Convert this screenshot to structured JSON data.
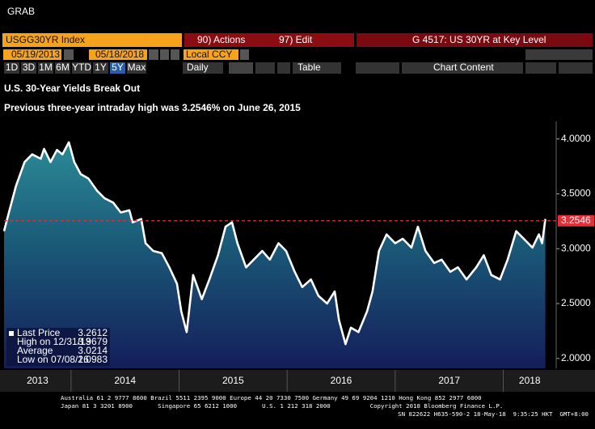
{
  "header": {
    "app": "GRAB"
  },
  "toolbar": {
    "ticker": "USGG30YR Index",
    "actions": "90) Actions",
    "edit": "97) Edit",
    "page_title": "G 4517: US 30YR at Key Level",
    "start_date": "05/19/2013",
    "end_date": "05/18/2018",
    "currency": "Local CCY",
    "frequency": "Daily",
    "table": "Table",
    "chart_content": "Chart Content",
    "periods": [
      "1D",
      "3D",
      "1M",
      "6M",
      "YTD",
      "1Y",
      "5Y",
      "Max"
    ]
  },
  "chart_data": {
    "type": "line",
    "title": "U.S. 30-Year Yields Break Out",
    "subtitle": "Previous three-year intraday high was 3.2546% on June 26, 2015",
    "x": [
      2013.38,
      2013.42,
      2013.49,
      2013.57,
      2013.64,
      2013.72,
      2013.75,
      2013.81,
      2013.87,
      2013.92,
      2013.98,
      2014.03,
      2014.09,
      2014.16,
      2014.24,
      2014.31,
      2014.39,
      2014.46,
      2014.54,
      2014.57,
      2014.65,
      2014.69,
      2014.76,
      2014.84,
      2014.91,
      2014.98,
      2015.02,
      2015.07,
      2015.13,
      2015.21,
      2015.28,
      2015.36,
      2015.43,
      2015.49,
      2015.54,
      2015.62,
      2015.69,
      2015.77,
      2015.84,
      2015.92,
      2015.99,
      2016.07,
      2016.14,
      2016.22,
      2016.29,
      2016.37,
      2016.44,
      2016.48,
      2016.54,
      2016.59,
      2016.66,
      2016.74,
      2016.79,
      2016.85,
      2016.92,
      2017.0,
      2017.07,
      2017.15,
      2017.21,
      2017.28,
      2017.36,
      2017.43,
      2017.51,
      2017.58,
      2017.66,
      2017.75,
      2017.82,
      2017.89,
      2017.97,
      2018.04,
      2018.12,
      2018.19,
      2018.27,
      2018.33,
      2018.36,
      2018.39
    ],
    "series": [
      {
        "color": "#ffffff",
        "values": [
          3.16,
          3.31,
          3.57,
          3.79,
          3.86,
          3.82,
          3.91,
          3.79,
          3.9,
          3.86,
          3.97,
          3.79,
          3.68,
          3.64,
          3.53,
          3.46,
          3.42,
          3.33,
          3.35,
          3.24,
          3.27,
          3.05,
          2.98,
          2.96,
          2.83,
          2.68,
          2.43,
          2.24,
          2.76,
          2.54,
          2.72,
          2.94,
          3.2,
          3.24,
          3.05,
          2.83,
          2.9,
          2.98,
          2.9,
          3.05,
          2.98,
          2.79,
          2.65,
          2.72,
          2.57,
          2.5,
          2.61,
          2.35,
          2.13,
          2.28,
          2.24,
          2.43,
          2.61,
          2.98,
          3.13,
          3.05,
          3.09,
          3.01,
          3.2,
          2.98,
          2.87,
          2.9,
          2.79,
          2.83,
          2.72,
          2.83,
          2.94,
          2.76,
          2.72,
          2.9,
          3.16,
          3.09,
          3.01,
          3.13,
          3.05,
          3.27
        ]
      }
    ],
    "xlim": [
      2013.38,
      2018.49
    ],
    "x_labels": [
      "2013",
      "2014",
      "2015",
      "2016",
      "2017",
      "2018"
    ],
    "year_dividers": [
      2014,
      2015,
      2016,
      2017,
      2018
    ],
    "ylim": [
      1.91,
      4.16
    ],
    "yticks": [
      {
        "value": 2,
        "label": "2.0000"
      },
      {
        "value": 2.5,
        "label": "2.5000"
      },
      {
        "value": 3,
        "label": "3.0000"
      },
      {
        "value": 3.5,
        "label": "3.5000"
      },
      {
        "value": 4,
        "label": "4.0000"
      }
    ],
    "reference_line": {
      "value": 3.2546,
      "color": "#e0303a"
    },
    "legend": [
      {
        "label": "Last Price",
        "value": 3.2612
      },
      {
        "label": "High on 12/31/13",
        "value": 3.9679
      },
      {
        "label": "Average",
        "value": 3.0214
      },
      {
        "label": "Low on 07/08/16",
        "value": 2.0983
      }
    ]
  },
  "footer": {
    "line1": "Australia 61 2 9777 8600 Brazil 5511 2395 9000 Europe 44 20 7330 7500 Germany 49 69 9204 1210 Hong Kong 852 2977 6000",
    "line2": "Japan 81 3 3201 8900       Singapore 65 6212 1000       U.S. 1 212 318 2000           Copyright 2018 Bloomberg Finance L.P.",
    "line3": "SN 822622 H635-590-2 18-May-18  9:35:25 HKT  GMT+8:00"
  }
}
